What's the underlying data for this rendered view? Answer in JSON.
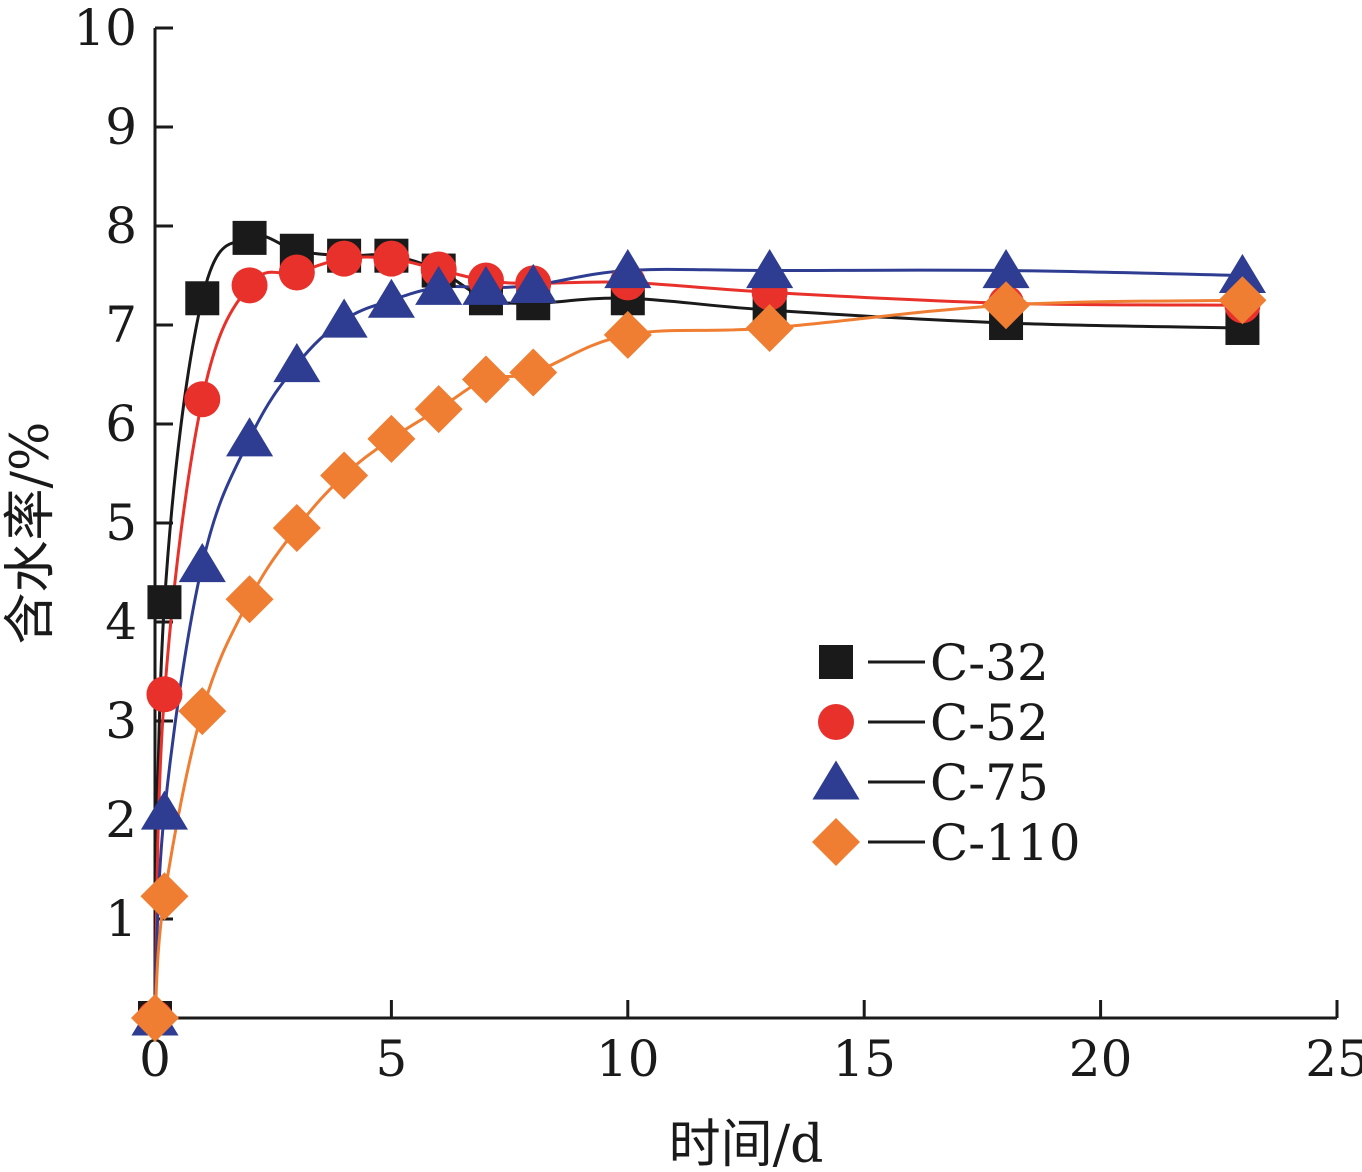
{
  "chart_data": {
    "type": "line",
    "title": "",
    "xlabel": "时间/d",
    "ylabel": "含水率/%",
    "xlim": [
      0,
      25
    ],
    "ylim": [
      0,
      10
    ],
    "xticks": [
      "0",
      "5",
      "10",
      "15",
      "20",
      "25"
    ],
    "yticks": [
      "1",
      "2",
      "3",
      "4",
      "5",
      "6",
      "7",
      "8",
      "9",
      "10"
    ],
    "grid": false,
    "legend_position": "center-right",
    "series": [
      {
        "name": "C-32",
        "marker": "square",
        "color": "#1a1a1a",
        "x": [
          0,
          0.2,
          1,
          2,
          3,
          4,
          5,
          6,
          7,
          8,
          10,
          13,
          18,
          23
        ],
        "y": [
          0,
          4.2,
          7.27,
          7.88,
          7.75,
          7.7,
          7.7,
          7.55,
          7.27,
          7.22,
          7.27,
          7.15,
          7.02,
          6.97
        ]
      },
      {
        "name": "C-52",
        "marker": "circle",
        "color": "#e8312a",
        "x": [
          0,
          0.2,
          1,
          2,
          3,
          4,
          5,
          6,
          7,
          8,
          10,
          13,
          18,
          23
        ],
        "y": [
          0,
          3.27,
          6.25,
          7.4,
          7.53,
          7.67,
          7.67,
          7.56,
          7.45,
          7.42,
          7.43,
          7.33,
          7.22,
          7.2
        ]
      },
      {
        "name": "C-75",
        "marker": "triangle",
        "color": "#2e3d91",
        "x": [
          0,
          0.2,
          1,
          2,
          3,
          4,
          5,
          6,
          7,
          8,
          10,
          13,
          18,
          23
        ],
        "y": [
          0,
          2.08,
          4.58,
          5.85,
          6.6,
          7.05,
          7.25,
          7.38,
          7.38,
          7.4,
          7.55,
          7.55,
          7.55,
          7.5
        ]
      },
      {
        "name": "C-110",
        "marker": "diamond",
        "color": "#ef7d32",
        "x": [
          0,
          0.2,
          1,
          2,
          3,
          4,
          5,
          6,
          7,
          8,
          10,
          13,
          18,
          23
        ],
        "y": [
          0,
          1.23,
          3.1,
          4.23,
          4.95,
          5.48,
          5.85,
          6.15,
          6.45,
          6.52,
          6.9,
          6.97,
          7.2,
          7.25
        ]
      }
    ]
  }
}
